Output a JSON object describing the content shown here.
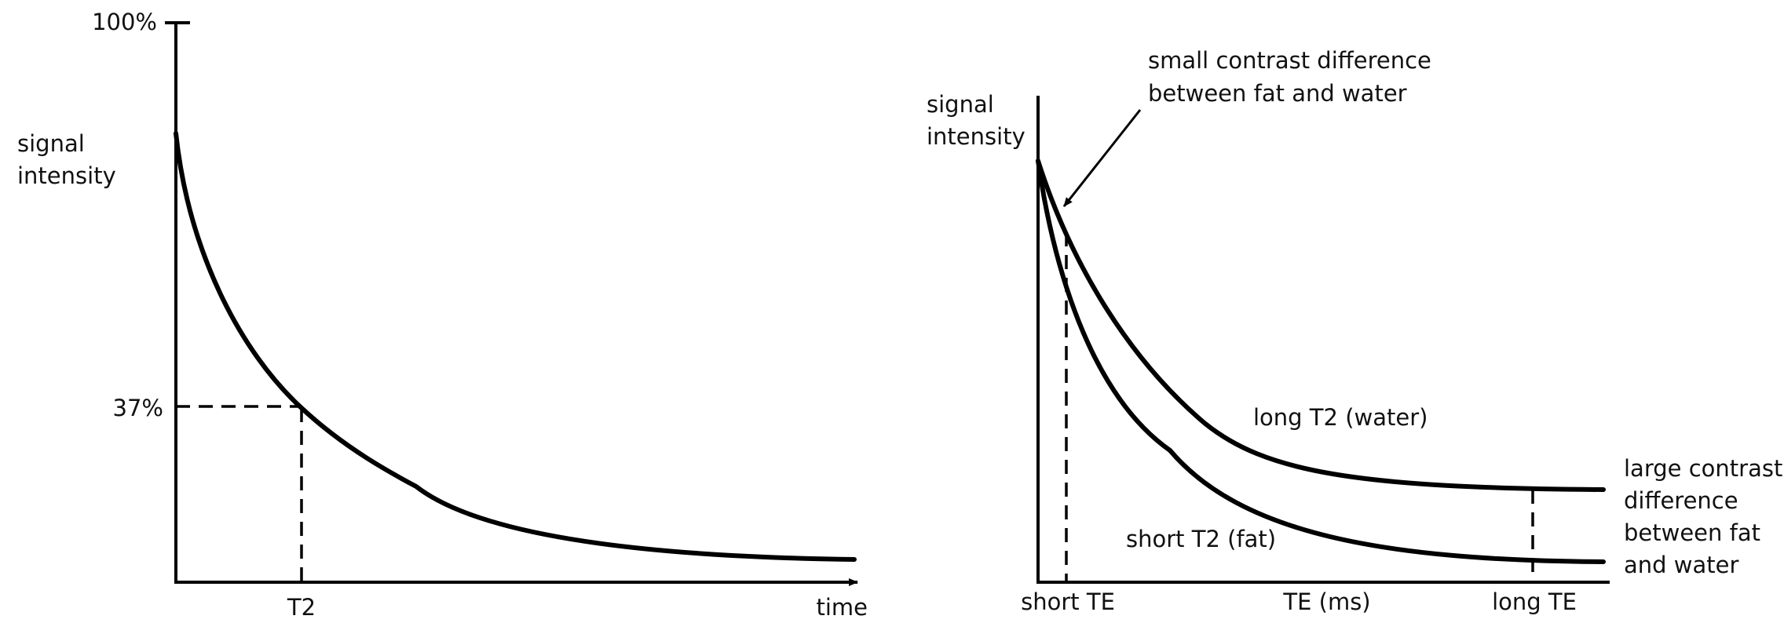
{
  "left_panel": {
    "y_axis_label": [
      "signal",
      "intensity"
    ],
    "y_top_tick": "100%",
    "y_marker_tick": "37%",
    "x_marker_tick": "T2",
    "x_axis_label": "time"
  },
  "right_panel": {
    "y_axis_label": [
      "signal",
      "intensity"
    ],
    "x_ticks": [
      "short TE",
      "TE (ms)",
      "long TE"
    ],
    "curve_labels": {
      "water": "long T2 (water)",
      "fat": "short T2 (fat)"
    },
    "annotation_small": [
      "small contrast difference",
      "between fat and water"
    ],
    "annotation_large": [
      "large contrast",
      "difference",
      "between fat",
      "and water"
    ]
  }
}
